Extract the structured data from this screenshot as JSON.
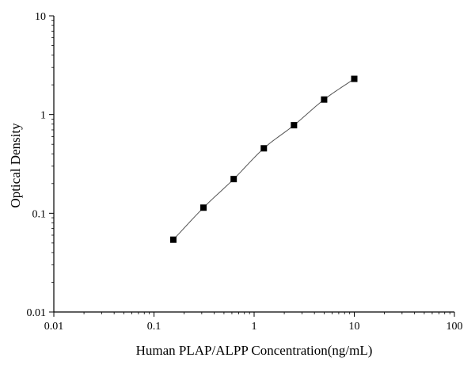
{
  "chart_data": {
    "type": "scatter",
    "title": "",
    "xlabel": "Human PLAP/ALPP Concentration(ng/mL)",
    "ylabel": "Optical Density",
    "x_scale": "log",
    "y_scale": "log",
    "xlim": [
      0.01,
      100
    ],
    "ylim": [
      0.01,
      10
    ],
    "x_ticks": [
      0.01,
      0.1,
      1,
      10,
      100
    ],
    "x_tick_labels": [
      "0.01",
      "0.1",
      "1",
      "10",
      "100"
    ],
    "y_ticks": [
      0.01,
      0.1,
      1,
      10
    ],
    "y_tick_labels": [
      "0.01",
      "0.1",
      "1",
      "10"
    ],
    "grid": false,
    "legend": "none",
    "series": [
      {
        "x": [
          0.156,
          0.312,
          0.625,
          1.25,
          2.5,
          5,
          10
        ],
        "y": [
          0.054,
          0.114,
          0.222,
          0.455,
          0.78,
          1.42,
          2.3
        ],
        "marker": "square",
        "line": "fitted-curve",
        "marker_color": "#000000",
        "line_color": "#555555"
      }
    ]
  }
}
